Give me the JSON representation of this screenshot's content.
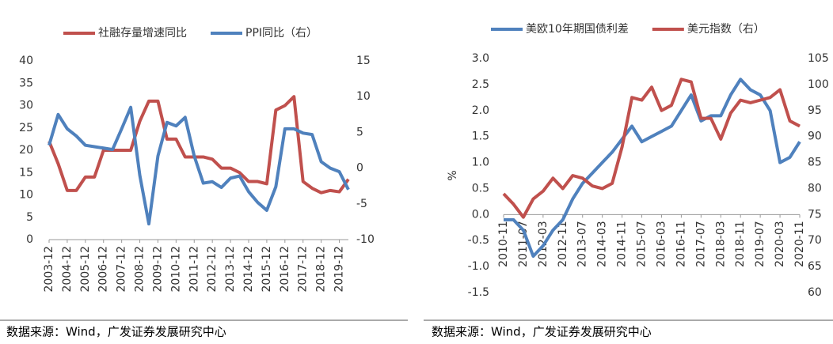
{
  "chart_data": [
    {
      "type": "line",
      "source": "数据来源：Wind，广发证券发展研究中心",
      "categories": [
        "2003-12",
        null,
        "2004-12",
        null,
        "2005-12",
        null,
        "2006-12",
        null,
        "2007-12",
        null,
        "2008-12",
        null,
        "2009-12",
        null,
        "2010-12",
        null,
        "2011-12",
        null,
        "2012-12",
        null,
        "2013-12",
        null,
        "2014-12",
        null,
        "2015-12",
        null,
        "2016-12",
        null,
        "2017-12",
        null,
        "2018-12",
        null,
        "2019-12",
        null
      ],
      "series": [
        {
          "name": "社融存量增速同比",
          "color": "#c0504d",
          "axis": "y",
          "values": [
            22,
            17,
            11,
            11,
            14,
            14,
            20,
            20,
            20,
            20,
            26.5,
            31,
            31,
            22.5,
            22.5,
            18.5,
            18.5,
            18.5,
            18,
            16,
            16,
            15,
            13,
            13,
            12.5,
            29,
            30,
            32,
            13,
            11.5,
            10.5,
            11,
            10.7,
            13.5
          ]
        },
        {
          "name": "PPI同比（右）",
          "color": "#4f81bd",
          "axis": "y2",
          "values": [
            3.2,
            7.5,
            5.5,
            4.5,
            3.2,
            3,
            2.8,
            2.6,
            5.5,
            8.5,
            -1,
            -7.8,
            1.7,
            6.4,
            5.9,
            7.1,
            1.7,
            -2.1,
            -1.9,
            -2.7,
            -1.4,
            -1.1,
            -3.3,
            -4.8,
            -5.9,
            -2.6,
            5.5,
            5.5,
            4.9,
            4.7,
            0.9,
            0,
            -0.5,
            -3
          ]
        }
      ],
      "ylim": [
        0,
        40
      ],
      "yticks": [
        0,
        5,
        10,
        15,
        20,
        25,
        30,
        35,
        40
      ],
      "y2lim": [
        -10,
        15
      ],
      "y2ticks": [
        -10,
        -5,
        0,
        5,
        10,
        15
      ],
      "legend": "top"
    },
    {
      "type": "line",
      "source": "数据来源：Wind，广发证券发展研究中心",
      "ylabel": "%",
      "categories": [
        "2010-11",
        null,
        "2011-07",
        null,
        "2012-03",
        null,
        "2012-11",
        null,
        "2013-07",
        null,
        "2014-03",
        null,
        "2014-11",
        null,
        "2015-07",
        null,
        "2016-03",
        null,
        "2016-11",
        null,
        "2017-07",
        null,
        "2018-03",
        null,
        "2018-11",
        null,
        "2019-07",
        null,
        "2020-03",
        null,
        "2020-11"
      ],
      "series": [
        {
          "name": "美欧10年期国债利差",
          "color": "#4f81bd",
          "axis": "y",
          "values": [
            -0.1,
            -0.1,
            -0.3,
            -0.8,
            -0.6,
            -0.3,
            -0.1,
            0.3,
            0.6,
            0.8,
            1.0,
            1.2,
            1.45,
            1.7,
            1.4,
            1.5,
            1.6,
            1.7,
            2.0,
            2.3,
            1.8,
            1.9,
            1.9,
            2.3,
            2.6,
            2.4,
            2.3,
            2.0,
            1.0,
            1.1,
            1.4
          ]
        },
        {
          "name": "美元指数（右）",
          "color": "#c0504d",
          "axis": "y2",
          "values": [
            79,
            77,
            74.5,
            78,
            79.5,
            82,
            80,
            82.5,
            82,
            80.5,
            80,
            81,
            88,
            97.5,
            97,
            99.5,
            95,
            96,
            101,
            100.5,
            93.5,
            93.5,
            89.5,
            94.5,
            97,
            96.5,
            97,
            97.5,
            99,
            93,
            92
          ]
        }
      ],
      "ylim": [
        -1.5,
        3
      ],
      "yticks": [
        -1.5,
        {
          "value": -1,
          "label": "-1.0"
        },
        -0.5,
        {
          "value": 0,
          "label": "0.0"
        },
        0.5,
        {
          "value": 1,
          "label": "1.0"
        },
        1.5,
        {
          "value": 2,
          "label": "2.0"
        },
        2.5,
        {
          "value": 3,
          "label": "3.0"
        }
      ],
      "y2lim": [
        60,
        105
      ],
      "y2ticks": [
        60,
        65,
        70,
        75,
        80,
        85,
        90,
        95,
        100,
        105
      ],
      "legend": "top"
    }
  ]
}
